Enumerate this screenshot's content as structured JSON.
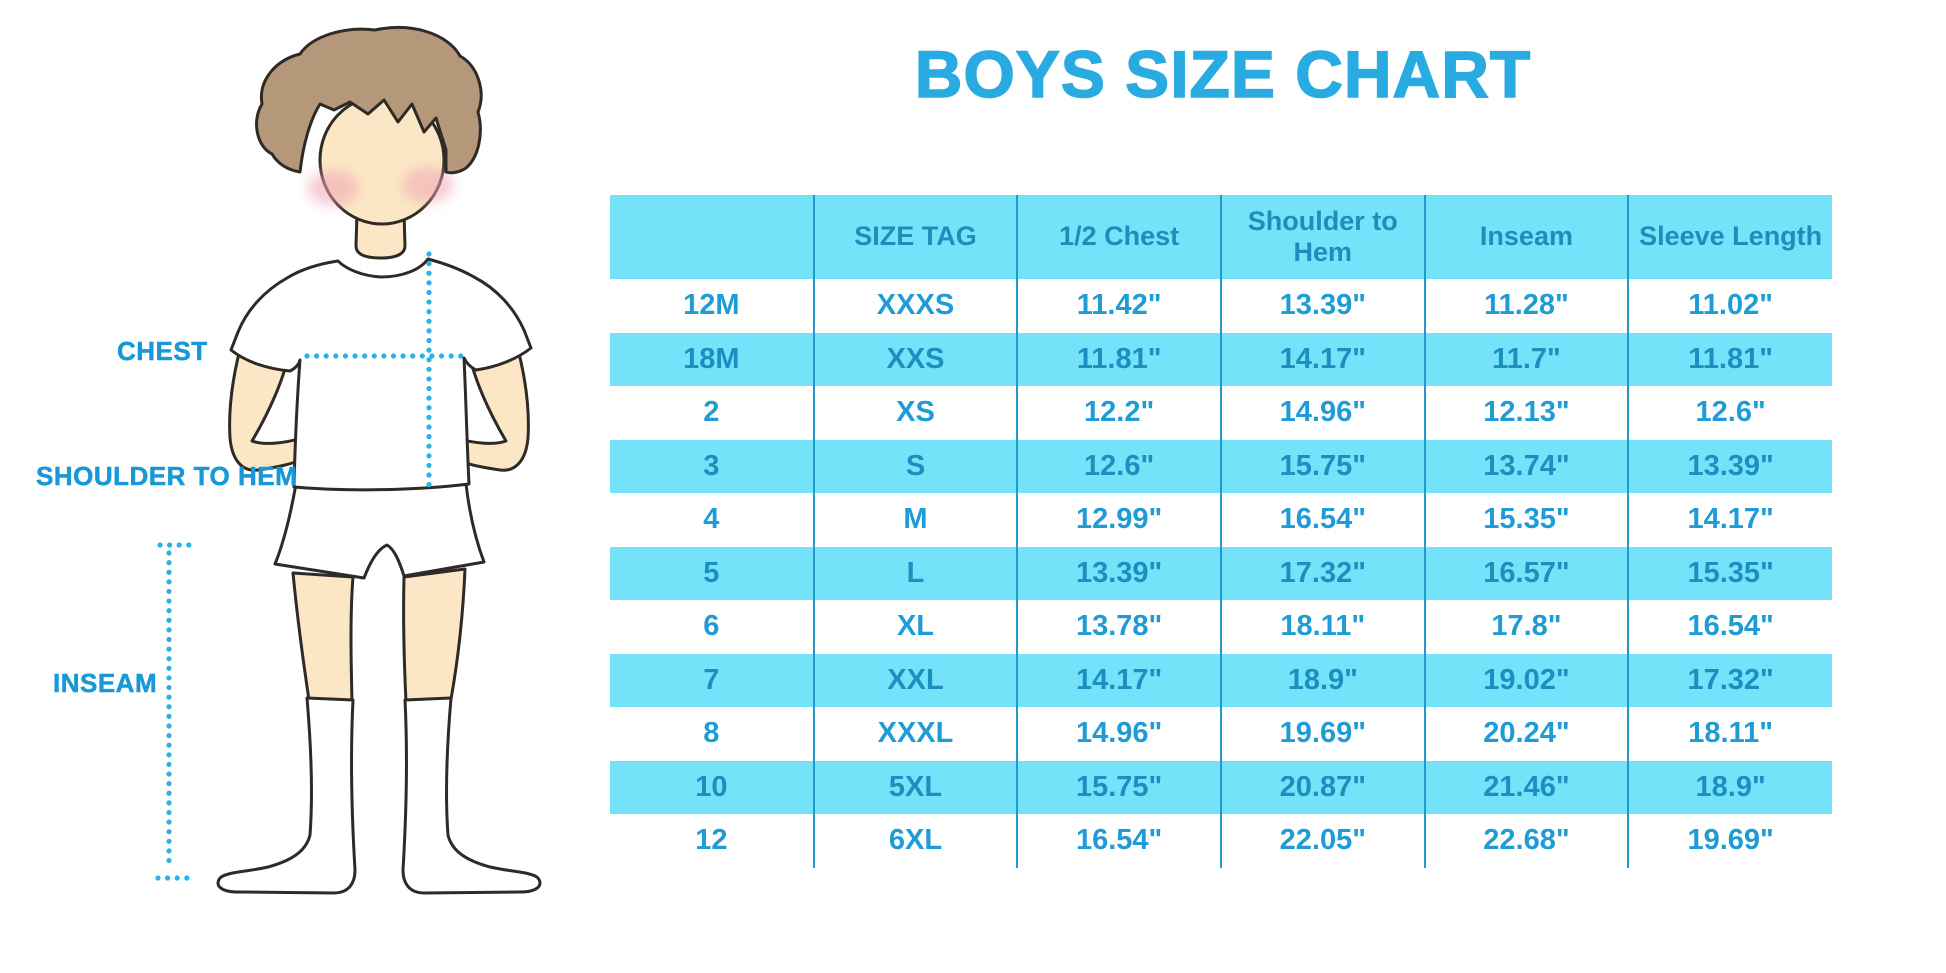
{
  "title": "BOYS SIZE CHART",
  "figure_labels": {
    "chest": "CHEST",
    "shoulder_to_hem": "SHOULDER TO HEM",
    "inseam": "INSEAM"
  },
  "chart_data": {
    "type": "table",
    "title": "BOYS SIZE CHART",
    "columns": [
      "",
      "SIZE TAG",
      "1/2 Chest",
      "Shoulder to Hem",
      "Inseam",
      "Sleeve Length"
    ],
    "rows": [
      [
        "12M",
        "XXXS",
        "11.42\"",
        "13.39\"",
        "11.28\"",
        "11.02\""
      ],
      [
        "18M",
        "XXS",
        "11.81\"",
        "14.17\"",
        "11.7\"",
        "11.81\""
      ],
      [
        "2",
        "XS",
        "12.2\"",
        "14.96\"",
        "12.13\"",
        "12.6\""
      ],
      [
        "3",
        "S",
        "12.6\"",
        "15.75\"",
        "13.74\"",
        "13.39\""
      ],
      [
        "4",
        "M",
        "12.99\"",
        "16.54\"",
        "15.35\"",
        "14.17\""
      ],
      [
        "5",
        "L",
        "13.39\"",
        "17.32\"",
        "16.57\"",
        "15.35\""
      ],
      [
        "6",
        "XL",
        "13.78\"",
        "18.11\"",
        "17.8\"",
        "16.54\""
      ],
      [
        "7",
        "XXL",
        "14.17\"",
        "18.9\"",
        "19.02\"",
        "17.32\""
      ],
      [
        "8",
        "XXXL",
        "14.96\"",
        "19.69\"",
        "20.24\"",
        "18.11\""
      ],
      [
        "10",
        "5XL",
        "15.75\"",
        "20.87\"",
        "21.46\"",
        "18.9\""
      ],
      [
        "12",
        "6XL",
        "16.54\"",
        "22.05\"",
        "22.68\"",
        "19.69\""
      ]
    ],
    "units": "inches",
    "row_highlight_pattern": "alternating, starting with white"
  },
  "colors": {
    "accent_title": "#29ABE2",
    "row_highlight": "#74E3FA",
    "table_text": "#1F9CD6",
    "column_separator": "#2199CC",
    "measure_dots": "#29B2E8",
    "label_text": "#1898D6",
    "skin": "#FBE7C5",
    "hair": "#B5987A"
  }
}
